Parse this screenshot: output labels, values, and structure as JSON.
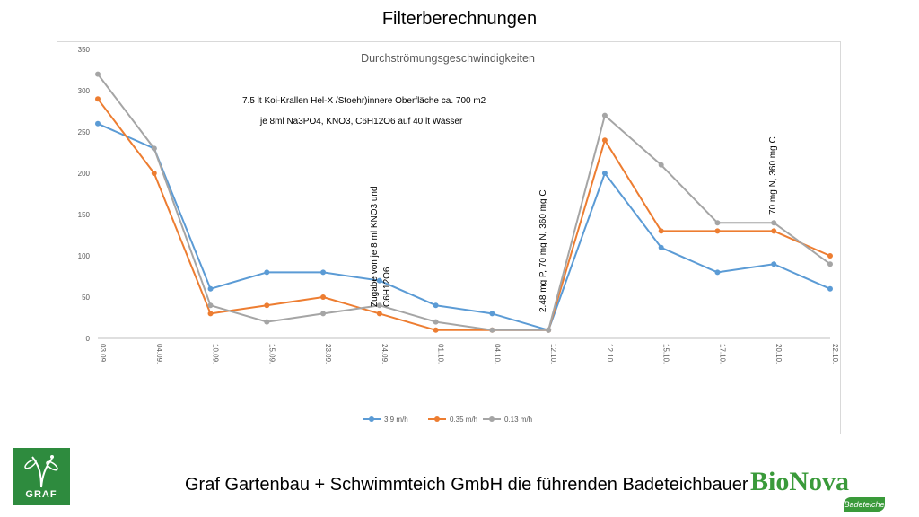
{
  "slide": {
    "title": "Filterberechnungen",
    "footer": "Graf Gartenbau + Schwimmteich GmbH die führenden Badeteichbauer",
    "logo_left_text": "GRAF",
    "logo_right_text": "BioNova",
    "logo_right_sub": "Badeteiche"
  },
  "colors": {
    "series1": "#5b9bd5",
    "series2": "#ed7d31",
    "series3": "#a5a5a5",
    "brand_green": "#3a9a3a"
  },
  "chart_data": {
    "type": "line",
    "title": "Durchströmungsgeschwindigkeiten",
    "xlabel": "",
    "ylabel": "",
    "ylim": [
      0,
      350
    ],
    "yticks": [
      0,
      50,
      100,
      150,
      200,
      250,
      300,
      350
    ],
    "categories": [
      "03.09.",
      "04.09.",
      "10.09.",
      "15.09.",
      "23.09.",
      "24.09.",
      "01.10.",
      "04.10.",
      "12.10.",
      "12.10.",
      "15.10.",
      "17.10.",
      "20.10.",
      "22.10."
    ],
    "series": [
      {
        "name": "3.9 m/h",
        "values": [
          260,
          230,
          60,
          80,
          80,
          70,
          40,
          30,
          10,
          200,
          110,
          80,
          90,
          60
        ]
      },
      {
        "name": "0.35 m/h",
        "values": [
          290,
          200,
          30,
          40,
          50,
          30,
          10,
          10,
          10,
          240,
          130,
          130,
          130,
          100
        ]
      },
      {
        "name": "0.13 m/h",
        "values": [
          320,
          230,
          40,
          20,
          30,
          40,
          20,
          10,
          10,
          270,
          210,
          140,
          140,
          90
        ]
      }
    ],
    "annotations": [
      {
        "text": "7.5 lt Koi-Krallen   Hel-X /Stoehr)innere Oberfläche ca. 700 m2",
        "orientation": "horizontal"
      },
      {
        "text": "je 8ml Na3PO4, KNO3, C6H12O6 auf 40 lt Wasser",
        "orientation": "horizontal"
      },
      {
        "text": "Zugabe von je 8 ml KNO3 und",
        "orientation": "vertical"
      },
      {
        "text": "C6H12O6",
        "orientation": "vertical"
      },
      {
        "text": "2.48 mg P, 70 mg N, 360 mg C",
        "orientation": "vertical"
      },
      {
        "text": "70 mg N, 360 mg C",
        "orientation": "vertical"
      }
    ],
    "grid": false,
    "legend_position": "bottom"
  }
}
